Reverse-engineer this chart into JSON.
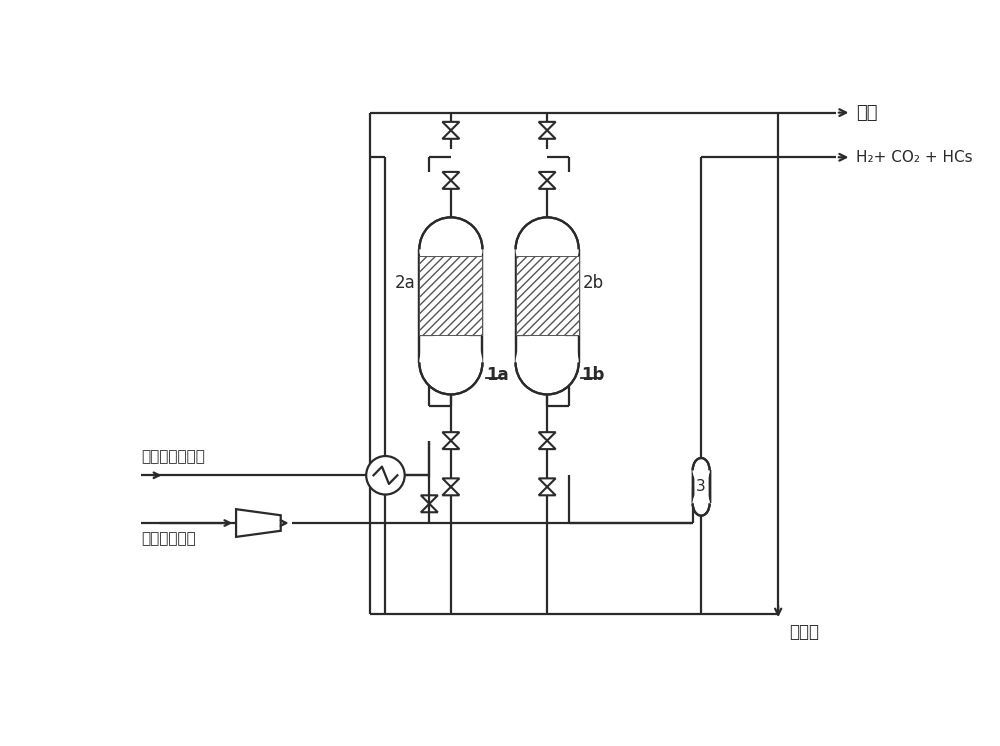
{
  "bg": "#ffffff",
  "lc": "#2a2a2a",
  "hc": "#555555",
  "lw": 1.6,
  "t1": "尾气",
  "t2": "H₂+ CO₂ + HCs",
  "t3": "费托反应合成水",
  "t4": "含氢气的气体",
  "t5": "清洁水",
  "l1a": "1a",
  "l1b": "1b",
  "l2a": "2a",
  "l2b": "2b",
  "l3": "3",
  "fig_w": 10.0,
  "fig_h": 7.46,
  "dpi": 100
}
